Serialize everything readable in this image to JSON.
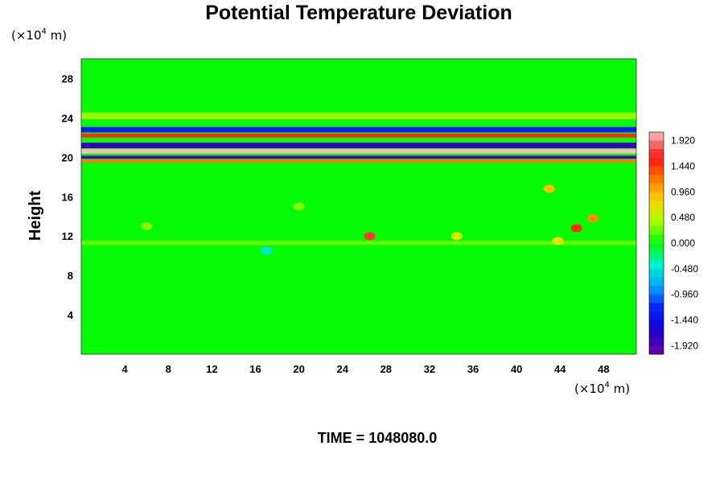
{
  "chart_data": {
    "type": "heatmap",
    "title": "Potential Temperature Deviation",
    "ylabel": "Height",
    "x_unit_prefix": "(×10",
    "x_unit_exp": "4",
    "x_unit_suffix": " m)",
    "y_unit_prefix": "(×10",
    "y_unit_exp": "4",
    "y_unit_suffix": " m)",
    "xlim": [
      0,
      51
    ],
    "ylim": [
      0,
      30
    ],
    "x_ticks": [
      "4",
      "8",
      "12",
      "16",
      "20",
      "24",
      "28",
      "32",
      "36",
      "40",
      "44",
      "48"
    ],
    "y_ticks": [
      "4",
      "8",
      "12",
      "16",
      "20",
      "24",
      "28"
    ],
    "colorbar": {
      "min": -2.08,
      "max": 2.08,
      "labels": [
        "1.920",
        "1.440",
        "0.960",
        "0.480",
        "0.000",
        "-0.480",
        "-0.960",
        "-1.440",
        "-1.920"
      ]
    },
    "bands": [
      {
        "y": 22.8,
        "width": 0.55,
        "value": -1.3
      },
      {
        "y": 22.2,
        "width": 0.4,
        "value": 1.5
      },
      {
        "y": 21.2,
        "width": 0.55,
        "value": -1.8
      },
      {
        "y": 20.6,
        "width": 0.45,
        "value": 2.1
      },
      {
        "y": 20.0,
        "width": 0.3,
        "value": -1.9
      },
      {
        "y": 19.6,
        "width": 0.3,
        "value": 1.2
      },
      {
        "y": 24.2,
        "width": 0.7,
        "value": 0.35
      },
      {
        "y": 11.3,
        "width": 0.4,
        "value": 0.25
      }
    ],
    "spots": [
      {
        "x": 26.5,
        "y": 12.0,
        "value": 1.7
      },
      {
        "x": 45.5,
        "y": 12.8,
        "value": 1.5
      },
      {
        "x": 47.0,
        "y": 13.8,
        "value": 1.1
      },
      {
        "x": 43.0,
        "y": 16.8,
        "value": 0.9
      },
      {
        "x": 43.8,
        "y": 11.5,
        "value": 0.7
      },
      {
        "x": 34.5,
        "y": 12.0,
        "value": 0.6
      },
      {
        "x": 17.0,
        "y": 10.5,
        "value": -0.45
      },
      {
        "x": 20.0,
        "y": 15.0,
        "value": 0.3
      },
      {
        "x": 6.0,
        "y": 13.0,
        "value": 0.3
      }
    ],
    "time_label": "TIME = 1048080.0"
  }
}
